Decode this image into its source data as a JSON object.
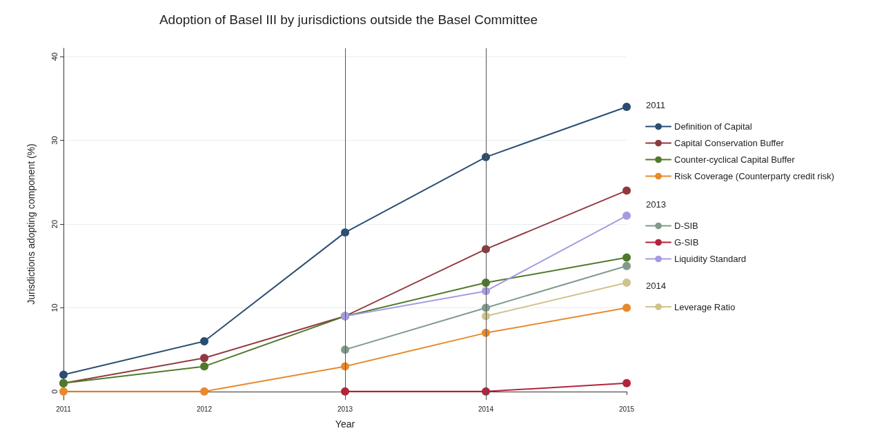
{
  "chart_data": {
    "type": "line",
    "title": "Adoption of Basel III by jurisdictions outside the Basel Committee",
    "xlabel": "Year",
    "ylabel": "Jurisdictions adopting component (%)",
    "x": [
      2011,
      2012,
      2013,
      2014,
      2015
    ],
    "xlim": [
      2011,
      2015
    ],
    "xticks": [
      2011,
      2012,
      2013,
      2014,
      2015
    ],
    "ylim": [
      -1,
      41
    ],
    "yticks": [
      0,
      10,
      20,
      30,
      40
    ],
    "grid": "y",
    "legend": "right",
    "marker": "circle",
    "line_style": "solid",
    "annotations": [
      "2011",
      "2013",
      "2014"
    ],
    "ref_lines": [
      {
        "axis": "x",
        "value": 2013,
        "color": "#555555"
      },
      {
        "axis": "x",
        "value": 2014,
        "color": "#555555"
      }
    ],
    "series": [
      {
        "name": "Definition of Capital",
        "color": "#2b4d72",
        "values": [
          2,
          6,
          19,
          28,
          34
        ]
      },
      {
        "name": "Capital Conservation Buffer",
        "color": "#90393d",
        "values": [
          1,
          4,
          9,
          17,
          24
        ]
      },
      {
        "name": "Counter-cyclical Capital Buffer",
        "color": "#4f7a2a",
        "values": [
          1,
          3,
          9,
          13,
          16
        ]
      },
      {
        "name": "Risk Coverage (Counterparty credit risk)",
        "color": "#e8892b",
        "values": [
          0,
          0,
          3,
          7,
          10
        ]
      },
      {
        "name": "D-SIB",
        "color": "#7f9c8a",
        "x": [
          2013,
          2014,
          2015
        ],
        "values": [
          5,
          10,
          15
        ]
      },
      {
        "name": "G-SIB",
        "color": "#b2243a",
        "x": [
          2013,
          2014,
          2015
        ],
        "values": [
          0,
          0,
          1
        ]
      },
      {
        "name": "Liquidity Standard",
        "color": "#a59ce0",
        "x": [
          2013,
          2014,
          2015
        ],
        "values": [
          9,
          12,
          21
        ]
      },
      {
        "name": "Leverage Ratio",
        "color": "#cfc38a",
        "x": [
          2014,
          2015
        ],
        "values": [
          9,
          13
        ]
      }
    ]
  }
}
